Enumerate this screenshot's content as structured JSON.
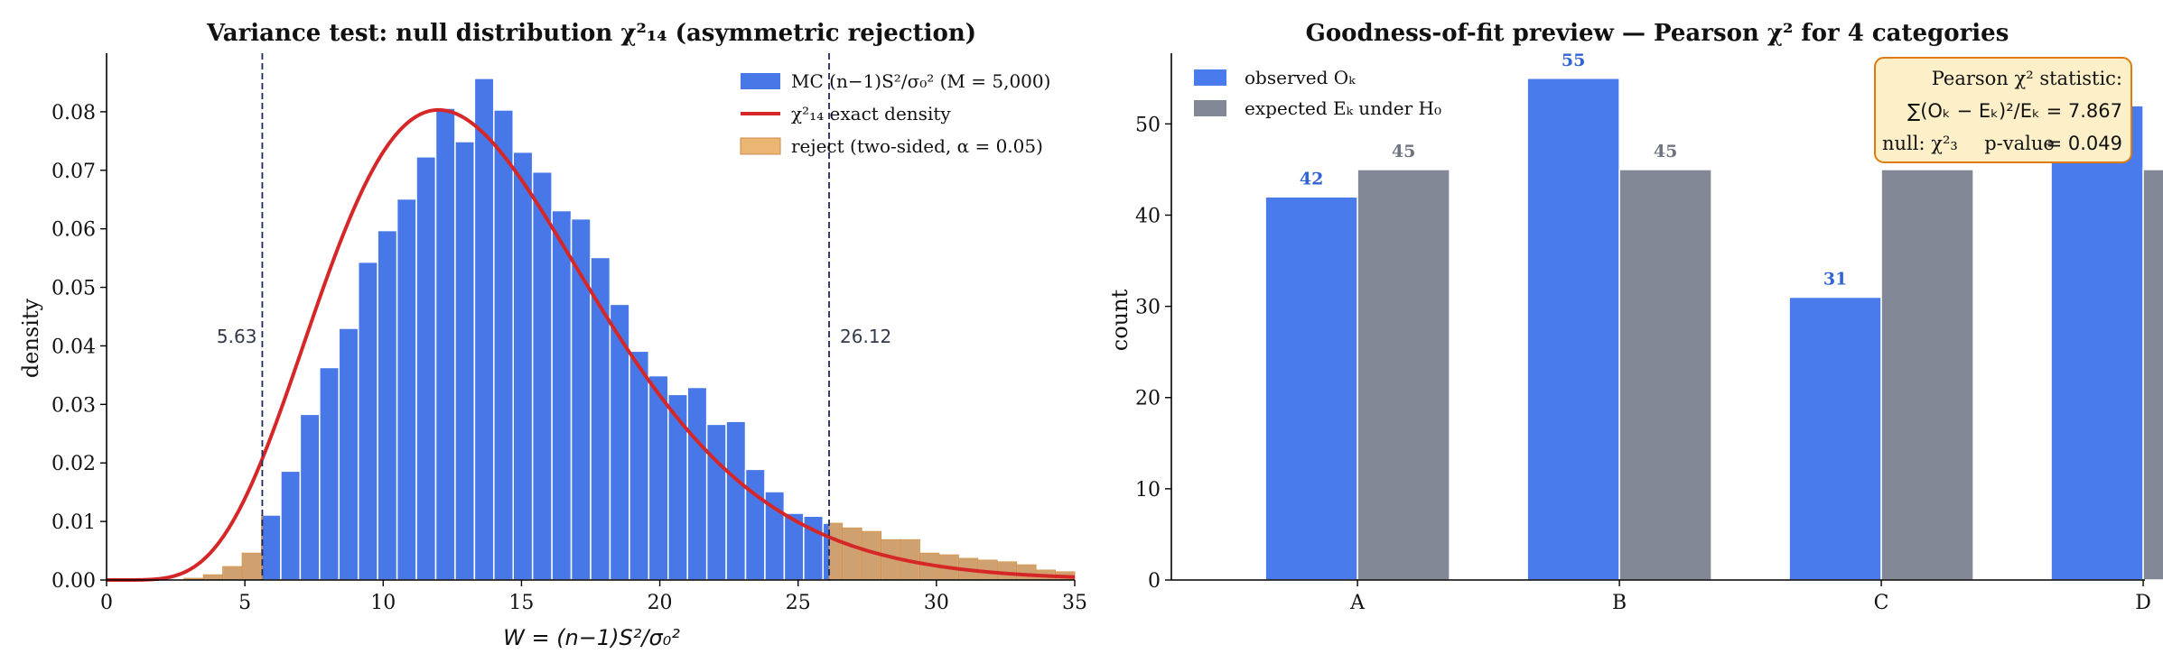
{
  "chart_data": [
    {
      "type": "bar",
      "title": "Variance test: null distribution χ²₁₄ (asymmetric rejection)",
      "xlabel": "W = (n−1)S²/σ₀²",
      "ylabel": "density",
      "xlim": [
        0,
        35
      ],
      "ylim": [
        0,
        0.09
      ],
      "xticks": [
        "0",
        "5",
        "10",
        "15",
        "20",
        "25",
        "30",
        "35"
      ],
      "yticks": [
        "0.00",
        "0.01",
        "0.02",
        "0.03",
        "0.04",
        "0.05",
        "0.06",
        "0.07",
        "0.08"
      ],
      "grid": false,
      "legend_position": "top-right",
      "legend": [
        {
          "label": "MC (n−1)S²/σ₀²   (M = 5,000)",
          "color": "#4878e8"
        },
        {
          "label": "χ²₁₄  exact density",
          "color": "#d62728"
        },
        {
          "label": "reject (two-sided, α = 0.05)",
          "color": "#e8a85c"
        }
      ],
      "histogram": {
        "bin_width": 0.7,
        "bin_start": 0,
        "densities": [
          0,
          0,
          0,
          0,
          0.0003,
          0.0009,
          0.0023,
          0.0046,
          0.0111,
          0.0186,
          0.0283,
          0.0363,
          0.043,
          0.0543,
          0.0597,
          0.0651,
          0.0723,
          0.0806,
          0.0749,
          0.0857,
          0.0803,
          0.0731,
          0.0697,
          0.0631,
          0.0617,
          0.0551,
          0.0471,
          0.0391,
          0.0349,
          0.0317,
          0.0329,
          0.0266,
          0.0271,
          0.0189,
          0.0151,
          0.0114,
          0.0109,
          0.0097,
          0.0089,
          0.0083,
          0.0069,
          0.0069,
          0.0046,
          0.0043,
          0.0037,
          0.0034,
          0.0031,
          0.0026,
          0.0017,
          0.0014
        ],
        "color": "#4878e8"
      },
      "density_curve": {
        "distribution": "chi-square",
        "df": 14,
        "color": "#d62728"
      },
      "critical_values": [
        {
          "value": 5.63,
          "label": "5.63"
        },
        {
          "value": 26.12,
          "label": "26.12"
        }
      ],
      "reject_color": "#e8a85c"
    },
    {
      "type": "bar",
      "title": "Goodness-of-fit preview — Pearson χ² for 4 categories",
      "xlabel": "",
      "ylabel": "count",
      "ylim": [
        0,
        57.75
      ],
      "yticks": [
        "0",
        "10",
        "20",
        "30",
        "40",
        "50"
      ],
      "grid": false,
      "legend_position": "top-left",
      "categories": [
        "A",
        "B",
        "C",
        "D"
      ],
      "series": [
        {
          "name": "observed O_k",
          "legend_label": "observed Oₖ",
          "values": [
            42,
            55,
            31,
            52
          ],
          "labels": [
            "42",
            "55",
            "31",
            ""
          ],
          "color": "#4a7bec"
        },
        {
          "name": "expected E_k under H_0",
          "legend_label": "expected Eₖ under H₀",
          "values": [
            45,
            45,
            45,
            45
          ],
          "labels": [
            "45",
            "45",
            "45",
            ""
          ],
          "color": "#828896"
        }
      ],
      "annotation": {
        "line1": "Pearson χ² statistic:",
        "line2": "∑(Oₖ − Eₖ)²/Eₖ = 7.867",
        "line3_prefix": "null: χ²₃",
        "line3_mid": "p-value",
        "line3_value": "= 0.049",
        "background": "#fdf0c8",
        "border": "#e07b12"
      }
    }
  ]
}
